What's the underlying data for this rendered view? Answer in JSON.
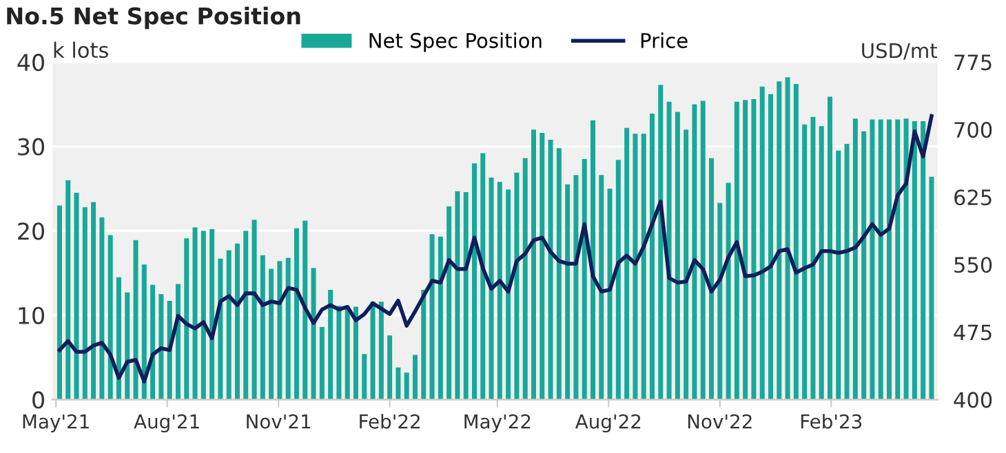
{
  "chart_data": {
    "type": "bar",
    "title": "No.5 Net Spec Position",
    "ylabel": "k lots",
    "y2label": "USD/mt",
    "x": [
      "2021-05-04",
      "2021-05-11",
      "2021-05-18",
      "2021-05-25",
      "2021-06-01",
      "2021-06-08",
      "2021-06-15",
      "2021-06-22",
      "2021-06-29",
      "2021-07-06",
      "2021-07-13",
      "2021-07-20",
      "2021-07-27",
      "2021-08-03",
      "2021-08-10",
      "2021-08-17",
      "2021-08-24",
      "2021-08-31",
      "2021-09-07",
      "2021-09-14",
      "2021-09-21",
      "2021-09-28",
      "2021-10-05",
      "2021-10-12",
      "2021-10-19",
      "2021-10-26",
      "2021-11-02",
      "2021-11-09",
      "2021-11-16",
      "2021-11-23",
      "2021-11-30",
      "2021-12-07",
      "2021-12-14",
      "2021-12-21",
      "2021-12-28",
      "2022-01-04",
      "2022-01-11",
      "2022-01-18",
      "2022-01-25",
      "2022-02-01",
      "2022-02-08",
      "2022-02-15",
      "2022-02-22",
      "2022-03-01",
      "2022-03-08",
      "2022-03-15",
      "2022-03-22",
      "2022-03-29",
      "2022-04-05",
      "2022-04-12",
      "2022-04-19",
      "2022-04-26",
      "2022-05-03",
      "2022-05-10",
      "2022-05-17",
      "2022-05-24",
      "2022-05-31",
      "2022-06-07",
      "2022-06-14",
      "2022-06-21",
      "2022-06-28",
      "2022-07-05",
      "2022-07-12",
      "2022-07-19",
      "2022-07-26",
      "2022-08-02",
      "2022-08-09",
      "2022-08-16",
      "2022-08-23",
      "2022-08-30",
      "2022-09-06",
      "2022-09-13",
      "2022-09-20",
      "2022-09-27",
      "2022-10-04",
      "2022-10-11",
      "2022-10-18",
      "2022-10-25",
      "2022-11-01",
      "2022-11-08",
      "2022-11-15",
      "2022-11-22",
      "2022-11-29",
      "2022-12-06",
      "2022-12-13",
      "2022-12-20",
      "2022-12-27",
      "2023-01-03",
      "2023-01-10",
      "2023-01-17",
      "2023-01-24",
      "2023-01-31",
      "2023-02-07",
      "2023-02-14",
      "2023-02-21",
      "2023-02-28",
      "2023-03-07",
      "2023-03-14",
      "2023-03-21",
      "2023-03-28",
      "2023-04-04",
      "2023-04-11",
      "2023-04-18",
      "2023-04-25"
    ],
    "series": [
      {
        "name": "Net Spec Position",
        "color": "#19a898",
        "values": [
          23.0,
          26.0,
          24.5,
          22.8,
          23.4,
          21.6,
          19.5,
          14.5,
          12.7,
          18.9,
          16.0,
          13.6,
          12.5,
          11.7,
          13.7,
          19.1,
          20.4,
          20.0,
          20.2,
          16.7,
          17.7,
          18.5,
          20.0,
          21.3,
          17.1,
          15.5,
          16.4,
          16.8,
          20.3,
          21.2,
          15.6,
          8.6,
          13.0,
          11.1,
          11.1,
          11.0,
          5.4,
          11.6,
          11.6,
          7.6,
          3.8,
          3.2,
          5.3,
          13.0,
          19.6,
          19.3,
          22.9,
          24.7,
          24.6,
          28.0,
          29.2,
          26.3,
          25.8,
          24.9,
          26.9,
          28.6,
          32.0,
          31.6,
          30.8,
          29.8,
          25.5,
          26.6,
          28.5,
          33.1,
          26.6,
          25.0,
          28.4,
          32.2,
          31.5,
          31.5,
          33.9,
          37.3,
          35.3,
          34.1,
          32.0,
          35.0,
          35.4,
          28.6,
          23.3,
          25.7,
          35.3,
          35.5,
          35.6,
          37.1,
          36.2,
          37.7,
          38.2,
          37.4,
          32.6,
          33.5,
          32.4,
          35.9,
          29.5,
          30.3,
          33.3,
          31.8,
          33.2,
          33.2,
          33.2,
          33.2,
          33.3,
          33.0,
          33.0,
          26.4
        ]
      },
      {
        "name": "Price",
        "type": "line",
        "axis": "y2",
        "color": "#0f1f5c",
        "values": [
          455,
          465,
          453,
          453,
          460,
          463,
          450,
          424,
          442,
          444,
          420,
          450,
          457,
          455,
          493,
          484,
          479,
          486,
          468,
          509,
          515,
          505,
          518,
          518,
          505,
          509,
          507,
          524,
          522,
          502,
          485,
          500,
          505,
          500,
          503,
          488,
          495,
          507,
          501,
          495,
          510,
          482,
          498,
          515,
          532,
          530,
          555,
          545,
          545,
          580,
          546,
          523,
          532,
          520,
          554,
          562,
          577,
          580,
          564,
          554,
          551,
          551,
          595,
          537,
          520,
          522,
          552,
          560,
          551,
          570,
          595,
          620,
          535,
          530,
          531,
          555,
          545,
          520,
          533,
          558,
          575,
          537,
          538,
          542,
          548,
          565,
          567,
          541,
          546,
          550,
          565,
          565,
          563,
          565,
          569,
          581,
          595,
          583,
          590,
          627,
          640,
          698,
          670,
          715
        ]
      }
    ],
    "xlim": [
      "2021-04-28",
      "2023-04-30"
    ],
    "xticks": [
      {
        "value": "2021-05-01",
        "label": "May'21"
      },
      {
        "value": "2021-08-01",
        "label": "Aug'21"
      },
      {
        "value": "2021-11-01",
        "label": "Nov'21"
      },
      {
        "value": "2022-02-01",
        "label": "Feb'22"
      },
      {
        "value": "2022-05-01",
        "label": "May'22"
      },
      {
        "value": "2022-08-01",
        "label": "Aug'22"
      },
      {
        "value": "2022-11-01",
        "label": "Nov'22"
      },
      {
        "value": "2023-02-01",
        "label": "Feb'23"
      }
    ],
    "ylim": [
      0,
      40
    ],
    "yticks": [
      0,
      10,
      20,
      30,
      40
    ],
    "y2lim": [
      400,
      775
    ],
    "y2ticks": [
      400,
      475,
      550,
      625,
      700,
      775
    ],
    "grid": "y",
    "legend": "top"
  }
}
